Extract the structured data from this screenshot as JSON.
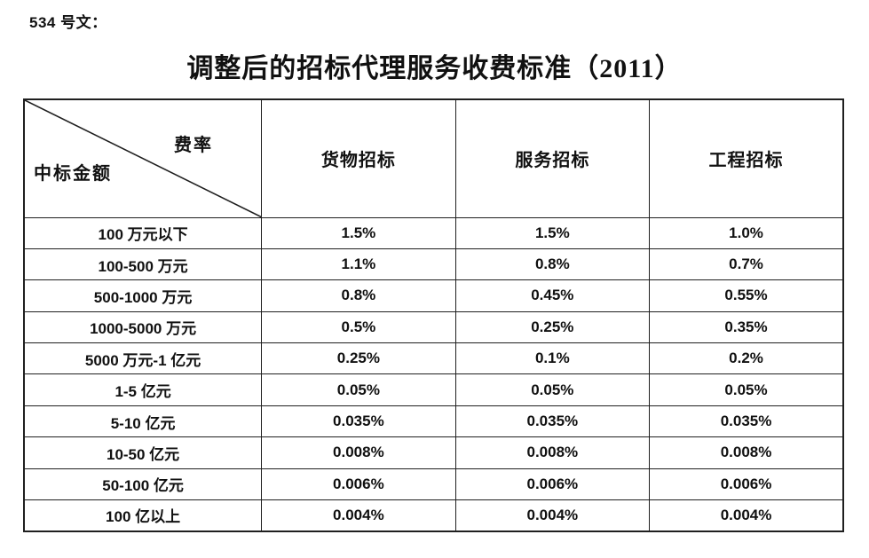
{
  "doc": {
    "ref": "534 号文：",
    "title": "调整后的招标代理服务收费标准（2011）"
  },
  "table": {
    "corner": {
      "top_right": "费率",
      "bottom_left": "中标金额"
    },
    "columns": [
      "货物招标",
      "服务招标",
      "工程招标"
    ],
    "rows": [
      {
        "label": "100 万元以下",
        "values": [
          "1.5%",
          "1.5%",
          "1.0%"
        ]
      },
      {
        "label": "100-500 万元",
        "values": [
          "1.1%",
          "0.8%",
          "0.7%"
        ]
      },
      {
        "label": "500-1000 万元",
        "values": [
          "0.8%",
          "0.45%",
          "0.55%"
        ]
      },
      {
        "label": "1000-5000 万元",
        "values": [
          "0.5%",
          "0.25%",
          "0.35%"
        ]
      },
      {
        "label": "5000 万元-1 亿元",
        "values": [
          "0.25%",
          "0.1%",
          "0.2%"
        ]
      },
      {
        "label": "1-5 亿元",
        "values": [
          "0.05%",
          "0.05%",
          "0.05%"
        ]
      },
      {
        "label": "5-10 亿元",
        "values": [
          "0.035%",
          "0.035%",
          "0.035%"
        ]
      },
      {
        "label": "10-50 亿元",
        "values": [
          "0.008%",
          "0.008%",
          "0.008%"
        ]
      },
      {
        "label": "50-100 亿元",
        "values": [
          "0.006%",
          "0.006%",
          "0.006%"
        ]
      },
      {
        "label": "100 亿以上",
        "values": [
          "0.004%",
          "0.004%",
          "0.004%"
        ]
      }
    ],
    "border_color": "#1f1f1f"
  }
}
